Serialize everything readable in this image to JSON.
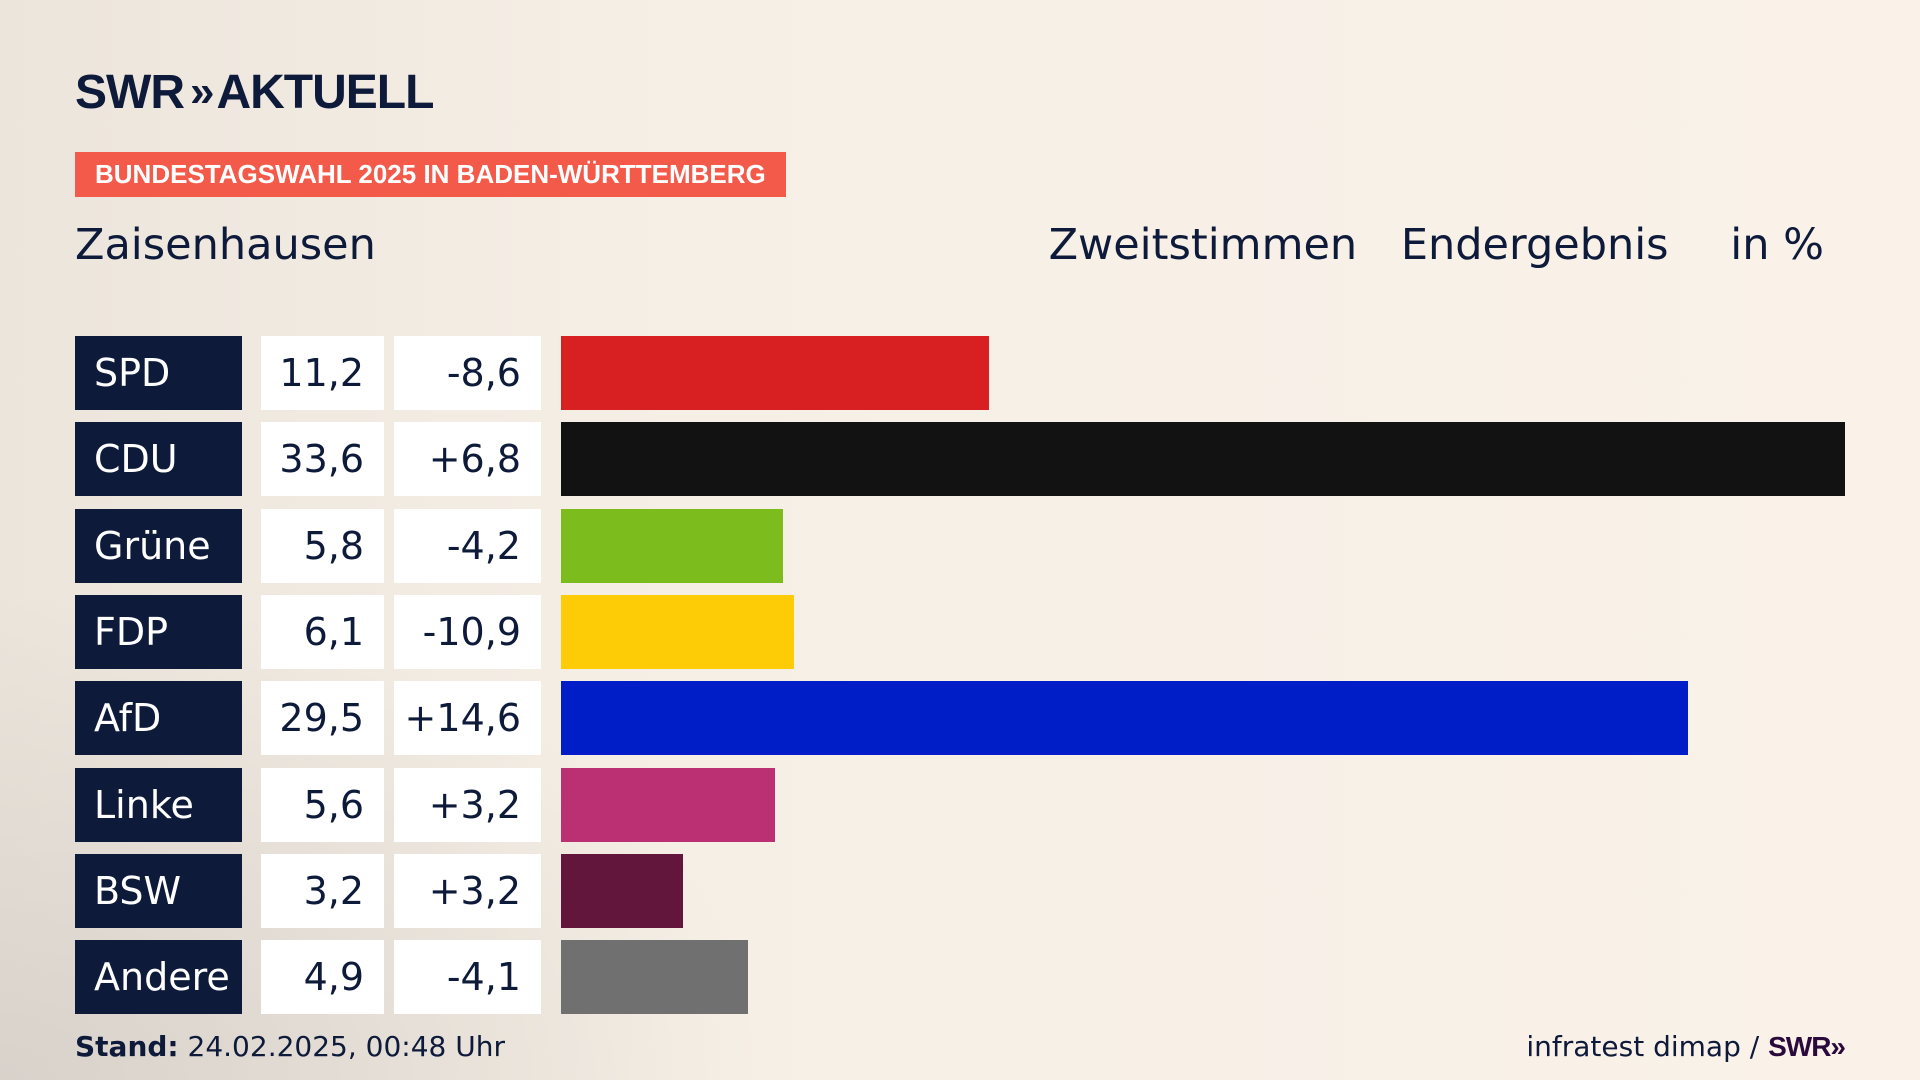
{
  "brand": {
    "logo_left": "SWR",
    "logo_chevrons": "»",
    "logo_right": "AKTUELL"
  },
  "tag": "BUNDESTAGSWAHL 2025 IN BADEN-WÜRTTEMBERG",
  "place": "Zaisenhausen",
  "header": {
    "vote_type": "Zweitstimmen",
    "result_type": "Endergebnis",
    "unit": "in %"
  },
  "footer": {
    "stand_label": "Stand:",
    "stand_value": "24.02.2025, 00:48 Uhr",
    "source": "infratest dimap / ",
    "source_brand": "SWR»"
  },
  "chart_data": {
    "type": "bar",
    "orientation": "horizontal",
    "categories": [
      "SPD",
      "CDU",
      "Grüne",
      "FDP",
      "AfD",
      "Linke",
      "BSW",
      "Andere"
    ],
    "values": [
      11.2,
      33.6,
      5.8,
      6.1,
      29.5,
      5.6,
      3.2,
      4.9
    ],
    "value_labels": [
      "11,2",
      "33,6",
      "5,8",
      "6,1",
      "29,5",
      "5,6",
      "3,2",
      "4,9"
    ],
    "diff_labels": [
      "-8,6",
      "+6,8",
      "-4,2",
      "-10,9",
      "+14,6",
      "+3,2",
      "+3,2",
      "-4,1"
    ],
    "colors": [
      "#d81f22",
      "#121212",
      "#7cbd1d",
      "#fecc06",
      "#001ec8",
      "#bb2f73",
      "#63163c",
      "#707070"
    ],
    "xlim": [
      0,
      33.6
    ]
  }
}
